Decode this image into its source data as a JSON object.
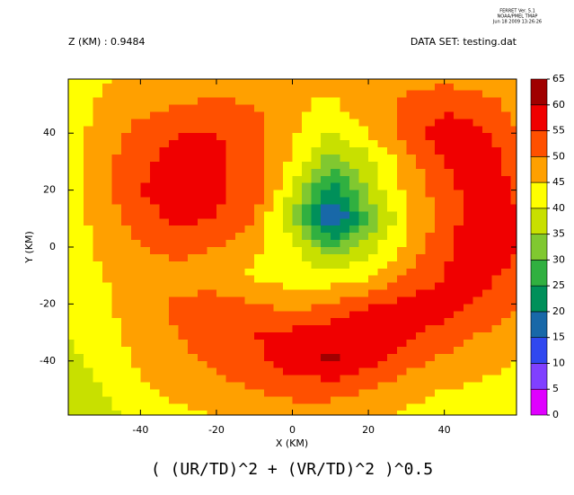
{
  "chart_data": {
    "type": "contour",
    "header": [
      "FERRET Ver. 5.1",
      "NOAA/PMEL TMAP",
      "Jun 18 2009 13:26:26"
    ],
    "subtitle_left": "Z (KM) : 0.9484",
    "subtitle_right": "DATA SET: testing.dat",
    "title": "( (UR/TD)^2 + (VR/TD)^2 )^0.5",
    "x_label": "X (KM)",
    "y_label": "Y (KM)",
    "xlim": [
      -59,
      59
    ],
    "ylim": [
      -59,
      59
    ],
    "xticks": [
      -40,
      -20,
      0,
      20,
      40
    ],
    "yticks": [
      -40,
      -20,
      0,
      20,
      40
    ],
    "x": [
      -60,
      -50,
      -40,
      -30,
      -20,
      -10,
      0,
      10,
      20,
      30,
      40,
      50,
      60
    ],
    "y": [
      60,
      50,
      40,
      30,
      20,
      10,
      0,
      -10,
      -20,
      -30,
      -40,
      -50,
      -60
    ],
    "z": [
      [
        42,
        44,
        46,
        47,
        47,
        46,
        46,
        47,
        47,
        48,
        48,
        47,
        46
      ],
      [
        42,
        46,
        48,
        50,
        51,
        50,
        46,
        44,
        48,
        51,
        54,
        52,
        48
      ],
      [
        42,
        47,
        52,
        55,
        55,
        52,
        46,
        40,
        45,
        52,
        58,
        56,
        50
      ],
      [
        42,
        48,
        54,
        57,
        56,
        53,
        44,
        32,
        38,
        48,
        55,
        58,
        52
      ],
      [
        42,
        48,
        55,
        57,
        56,
        53,
        40,
        22,
        36,
        46,
        53,
        58,
        54
      ],
      [
        42,
        47,
        53,
        56,
        55,
        50,
        35,
        12,
        30,
        44,
        52,
        58,
        55
      ],
      [
        42,
        46,
        50,
        52,
        50,
        46,
        42,
        30,
        38,
        46,
        54,
        60,
        55
      ],
      [
        42,
        45,
        47,
        48,
        47,
        44,
        42,
        42,
        44,
        50,
        55,
        57,
        52
      ],
      [
        41,
        44,
        48,
        51,
        52,
        50,
        48,
        50,
        54,
        57,
        58,
        54,
        50
      ],
      [
        40,
        43,
        47,
        50,
        54,
        55,
        56,
        58,
        60,
        57,
        53,
        50,
        47
      ],
      [
        38,
        42,
        46,
        48,
        51,
        54,
        58,
        61,
        57,
        52,
        49,
        47,
        45
      ],
      [
        36,
        40,
        44,
        46,
        48,
        50,
        52,
        52,
        50,
        47,
        45,
        44,
        43
      ],
      [
        35,
        38,
        42,
        44,
        45,
        46,
        47,
        47,
        46,
        44,
        43,
        42,
        42
      ]
    ],
    "levels": [
      0,
      5,
      10,
      15,
      20,
      25,
      30,
      35,
      40,
      45,
      50,
      55,
      60,
      65
    ],
    "colors": [
      "#e000ff",
      "#8040ff",
      "#3048f0",
      "#1868a8",
      "#00905a",
      "#30b040",
      "#80c830",
      "#c8e000",
      "#ffff00",
      "#ffa000",
      "#ff5000",
      "#f00000",
      "#a00000"
    ]
  }
}
